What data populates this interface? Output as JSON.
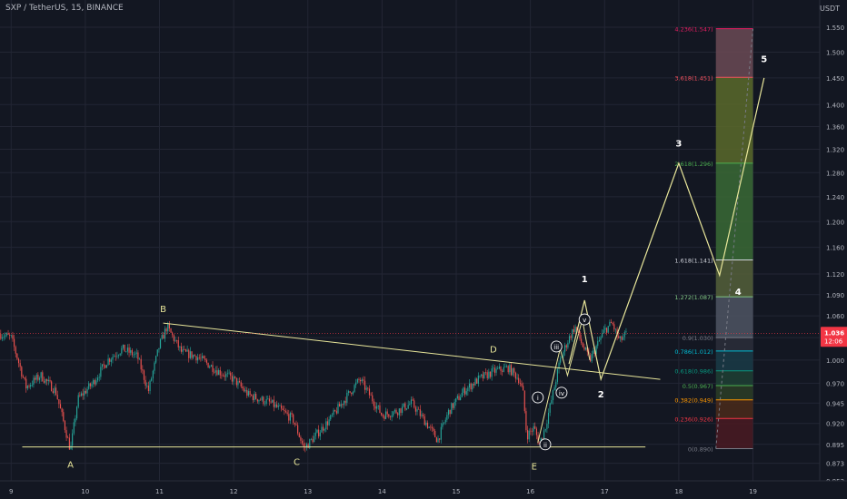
{
  "header": {
    "symbol": "SXP / TetherUS",
    "interval": "15",
    "exchange": "BINANCE"
  },
  "axis_unit": "USDT",
  "chart_data": {
    "type": "candlestick",
    "title": "SXP / TetherUS, 15, BINANCE",
    "y_scale": "log",
    "ylim": [
      0.853,
      1.565
    ],
    "xlim": [
      8.85,
      19.9
    ],
    "grid": true,
    "y_ticks": [
      1.55,
      1.5,
      1.45,
      1.4,
      1.36,
      1.32,
      1.28,
      1.24,
      1.2,
      1.16,
      1.12,
      1.09,
      1.06,
      1.03,
      1.0,
      0.97,
      0.945,
      0.92,
      0.895,
      0.873,
      0.853
    ],
    "y_tick_labels": [
      "1.550",
      "1.500",
      "1.450",
      "1.400",
      "1.360",
      "1.320",
      "1.280",
      "1.240",
      "1.200",
      "1.160",
      "1.120",
      "1.090",
      "1.060",
      "1.030",
      "1.000",
      "0.970",
      "0.945",
      "0.920",
      "0.895",
      "0.873",
      "0.853"
    ],
    "x_ticks": [
      9,
      10,
      11,
      12,
      13,
      14,
      15,
      16,
      17,
      18,
      19
    ],
    "x_tick_labels": [
      "9",
      "10",
      "11",
      "12",
      "13",
      "14",
      "15",
      "16",
      "17",
      "18",
      "19"
    ],
    "price_path": [
      [
        8.85,
        1.035
      ],
      [
        9.0,
        1.03
      ],
      [
        9.2,
        0.965
      ],
      [
        9.4,
        0.98
      ],
      [
        9.6,
        0.96
      ],
      [
        9.8,
        0.888
      ],
      [
        9.9,
        0.95
      ],
      [
        10.1,
        0.97
      ],
      [
        10.3,
        1.0
      ],
      [
        10.5,
        1.015
      ],
      [
        10.7,
        1.005
      ],
      [
        10.85,
        0.96
      ],
      [
        11.0,
        1.02
      ],
      [
        11.1,
        1.045
      ],
      [
        11.3,
        1.01
      ],
      [
        11.5,
        1.005
      ],
      [
        11.8,
        0.985
      ],
      [
        12.0,
        0.975
      ],
      [
        12.2,
        0.955
      ],
      [
        12.5,
        0.945
      ],
      [
        12.8,
        0.925
      ],
      [
        12.95,
        0.89
      ],
      [
        13.1,
        0.905
      ],
      [
        13.3,
        0.925
      ],
      [
        13.5,
        0.95
      ],
      [
        13.7,
        0.975
      ],
      [
        13.8,
        0.96
      ],
      [
        14.0,
        0.93
      ],
      [
        14.2,
        0.935
      ],
      [
        14.4,
        0.945
      ],
      [
        14.6,
        0.92
      ],
      [
        14.75,
        0.9
      ],
      [
        14.9,
        0.935
      ],
      [
        15.1,
        0.96
      ],
      [
        15.3,
        0.975
      ],
      [
        15.5,
        0.985
      ],
      [
        15.7,
        0.99
      ],
      [
        15.85,
        0.975
      ],
      [
        15.9,
        0.958
      ],
      [
        15.95,
        0.905
      ],
      [
        16.05,
        0.915
      ],
      [
        16.12,
        0.895
      ],
      [
        16.2,
        0.915
      ],
      [
        16.3,
        0.955
      ],
      [
        16.4,
        1.0
      ],
      [
        16.5,
        1.025
      ],
      [
        16.6,
        1.045
      ],
      [
        16.7,
        1.02
      ],
      [
        16.8,
        1.0
      ],
      [
        16.9,
        1.02
      ],
      [
        17.0,
        1.04
      ],
      [
        17.1,
        1.05
      ],
      [
        17.2,
        1.025
      ],
      [
        17.3,
        1.036
      ]
    ],
    "trendlines": [
      {
        "name": "upper",
        "from": [
          11.05,
          1.05
        ],
        "to": [
          17.75,
          0.975
        ]
      },
      {
        "name": "lower",
        "from": [
          9.15,
          0.892
        ],
        "to": [
          17.55,
          0.892
        ]
      }
    ],
    "triangle_labels": [
      {
        "text": "A",
        "x": 9.8,
        "y": 0.868
      },
      {
        "text": "B",
        "x": 11.05,
        "y": 1.065
      },
      {
        "text": "C",
        "x": 12.85,
        "y": 0.871
      },
      {
        "text": "D",
        "x": 15.5,
        "y": 1.01
      },
      {
        "text": "E",
        "x": 16.05,
        "y": 0.866
      }
    ],
    "subwave_path": [
      [
        16.1,
        0.897
      ],
      [
        16.4,
        1.015
      ],
      [
        16.5,
        0.98
      ],
      [
        16.7,
        1.055
      ],
      [
        16.8,
        1.0
      ]
    ],
    "subwave_labels": [
      {
        "text": "i",
        "x": 16.1,
        "y": 0.952
      },
      {
        "text": "ii",
        "x": 16.2,
        "y": 0.895
      },
      {
        "text": "iii",
        "x": 16.35,
        "y": 1.018
      },
      {
        "text": "iv",
        "x": 16.42,
        "y": 0.958
      },
      {
        "text": "v",
        "x": 16.73,
        "y": 1.055
      }
    ],
    "wave_path": [
      [
        16.52,
        0.995
      ],
      [
        16.73,
        1.082
      ],
      [
        16.95,
        0.975
      ],
      [
        18.0,
        1.296
      ],
      [
        18.55,
        1.118
      ],
      [
        19.15,
        1.45
      ]
    ],
    "wave_labels": [
      {
        "text": "1",
        "x": 16.73,
        "y": 1.108
      },
      {
        "text": "2",
        "x": 16.95,
        "y": 0.952
      },
      {
        "text": "3",
        "x": 18.0,
        "y": 1.325
      },
      {
        "text": "4",
        "x": 18.8,
        "y": 1.09
      },
      {
        "text": "5",
        "x": 19.15,
        "y": 1.48
      }
    ],
    "fib_x_range": [
      18.5,
      19.0
    ],
    "fib_levels": [
      {
        "label": "0(0.890)",
        "ratio": "0",
        "value": 0.89,
        "color": "#787b86"
      },
      {
        "label": "0.236(0.926)",
        "ratio": "0.236",
        "value": 0.926,
        "color": "#f23645"
      },
      {
        "label": "0.382(0.949)",
        "ratio": "0.382",
        "value": 0.949,
        "color": "#ff9800"
      },
      {
        "label": "0.5(0.967)",
        "ratio": "0.5",
        "value": 0.967,
        "color": "#4caf50"
      },
      {
        "label": "0.618(0.986)",
        "ratio": "0.618",
        "value": 0.986,
        "color": "#089981"
      },
      {
        "label": "0.786(1.012)",
        "ratio": "0.786",
        "value": 1.012,
        "color": "#00bcd4"
      },
      {
        "label": "0.9(1.030)",
        "ratio": "0.9",
        "value": 1.03,
        "color": "#787b86"
      },
      {
        "label": "1.272(1.087)",
        "ratio": "1.272",
        "value": 1.087,
        "color": "#81c784"
      },
      {
        "label": "1.618(1.141)",
        "ratio": "1.618",
        "value": 1.141,
        "color": "#d1d4dc"
      },
      {
        "label": "2.618(1.296)",
        "ratio": "2.618",
        "value": 1.296,
        "color": "#4caf50"
      },
      {
        "label": "3.618(1.451)",
        "ratio": "3.618",
        "value": 1.451,
        "color": "#f7525f"
      },
      {
        "label": "4.236(1.547)",
        "ratio": "4.236",
        "value": 1.547,
        "color": "#e91e63"
      }
    ],
    "fib_zone_colors": [
      "#4a1a22",
      "#4a2a1a",
      "#2c3d26",
      "#1f3f34",
      "#1a3b46",
      "#2b2e3a",
      "#4f5563",
      "#55603a",
      "#3a6a35",
      "#5a6a2a",
      "#6b4a55"
    ],
    "current_price": {
      "value": 1.036,
      "label": "1.036",
      "countdown": "12:06",
      "color": "#f23645"
    },
    "colors": {
      "up": "#26a69a",
      "down": "#ef5350",
      "wave": "#e8e69a",
      "trend": "#e8e69a",
      "grid": "#232634",
      "axis_text": "#b2b5be",
      "background": "#131722"
    }
  }
}
